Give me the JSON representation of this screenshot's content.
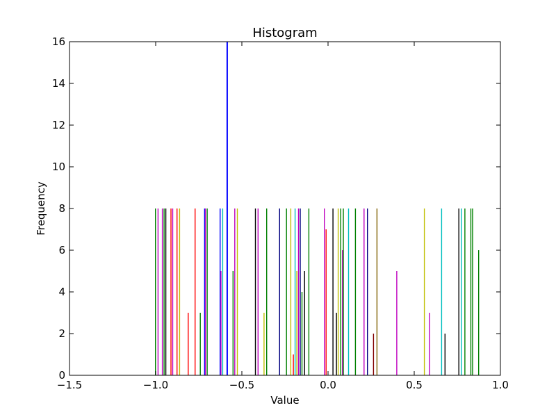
{
  "chart_data": {
    "type": "bar",
    "title": "Histogram",
    "xlabel": "Value",
    "ylabel": "Frequency",
    "xlim": [
      -1.5,
      1.0
    ],
    "ylim": [
      0,
      16
    ],
    "x_ticks": [
      "−1.5",
      "−1.0",
      "−0.5",
      "0.0",
      "0.5",
      "1.0"
    ],
    "y_ticks": [
      "0",
      "2",
      "4",
      "6",
      "8",
      "10",
      "12",
      "14",
      "16"
    ],
    "grid": false,
    "legend": "none",
    "bars": [
      {
        "x": -1.0,
        "value": 8,
        "color": "#008000"
      },
      {
        "x": -0.985,
        "value": 8,
        "color": "#bf00bf"
      },
      {
        "x": -0.96,
        "value": 8,
        "color": "#bf00bf"
      },
      {
        "x": -0.95,
        "value": 8,
        "color": "#008000"
      },
      {
        "x": -0.94,
        "value": 8,
        "color": "#000000"
      },
      {
        "x": -0.91,
        "value": 8,
        "color": "#ff0000"
      },
      {
        "x": -0.9,
        "value": 8,
        "color": "#bf00bf"
      },
      {
        "x": -0.875,
        "value": 8,
        "color": "#ff0000"
      },
      {
        "x": -0.86,
        "value": 8,
        "color": "#bfbf00"
      },
      {
        "x": -0.81,
        "value": 3,
        "color": "#ff0000"
      },
      {
        "x": -0.77,
        "value": 8,
        "color": "#ff0000"
      },
      {
        "x": -0.74,
        "value": 3,
        "color": "#008000"
      },
      {
        "x": -0.715,
        "value": 8,
        "color": "#0000ff"
      },
      {
        "x": -0.71,
        "value": 8,
        "color": "#bf00bf"
      },
      {
        "x": -0.7,
        "value": 8,
        "color": "#008000"
      },
      {
        "x": -0.625,
        "value": 8,
        "color": "#0000ff"
      },
      {
        "x": -0.62,
        "value": 5,
        "color": "#bf00bf"
      },
      {
        "x": -0.61,
        "value": 8,
        "color": "#00bfbf"
      },
      {
        "x": -0.585,
        "value": 16,
        "color": "#0000ff"
      },
      {
        "x": -0.55,
        "value": 5,
        "color": "#008000"
      },
      {
        "x": -0.54,
        "value": 8,
        "color": "#bf00bf"
      },
      {
        "x": -0.525,
        "value": 8,
        "color": "#bfbf00"
      },
      {
        "x": -0.42,
        "value": 8,
        "color": "#000000"
      },
      {
        "x": -0.405,
        "value": 8,
        "color": "#bf00bf"
      },
      {
        "x": -0.37,
        "value": 3,
        "color": "#bfbf00"
      },
      {
        "x": -0.355,
        "value": 8,
        "color": "#008000"
      },
      {
        "x": -0.28,
        "value": 8,
        "color": "#000080"
      },
      {
        "x": -0.24,
        "value": 8,
        "color": "#008000"
      },
      {
        "x": -0.215,
        "value": 8,
        "color": "#bfbf00"
      },
      {
        "x": -0.2,
        "value": 1,
        "color": "#ff0000"
      },
      {
        "x": -0.19,
        "value": 8,
        "color": "#00bfbf"
      },
      {
        "x": -0.18,
        "value": 5,
        "color": "#bfbf00"
      },
      {
        "x": -0.17,
        "value": 8,
        "color": "#bf00bf"
      },
      {
        "x": -0.16,
        "value": 8,
        "color": "#000080"
      },
      {
        "x": -0.15,
        "value": 4,
        "color": "#008000"
      },
      {
        "x": -0.135,
        "value": 5,
        "color": "#000000"
      },
      {
        "x": -0.11,
        "value": 8,
        "color": "#008000"
      },
      {
        "x": -0.02,
        "value": 8,
        "color": "#bf00bf"
      },
      {
        "x": -0.01,
        "value": 7,
        "color": "#ff0000"
      },
      {
        "x": 0.03,
        "value": 8,
        "color": "#000000"
      },
      {
        "x": 0.05,
        "value": 3,
        "color": "#000000"
      },
      {
        "x": 0.06,
        "value": 8,
        "color": "#bfbf00"
      },
      {
        "x": 0.075,
        "value": 8,
        "color": "#008000"
      },
      {
        "x": 0.085,
        "value": 6,
        "color": "#bf00bf"
      },
      {
        "x": 0.09,
        "value": 8,
        "color": "#008000"
      },
      {
        "x": 0.12,
        "value": 8,
        "color": "#00bfbf"
      },
      {
        "x": 0.16,
        "value": 8,
        "color": "#008000"
      },
      {
        "x": 0.21,
        "value": 8,
        "color": "#bf00bf"
      },
      {
        "x": 0.23,
        "value": 8,
        "color": "#000080"
      },
      {
        "x": 0.265,
        "value": 2,
        "color": "#800000"
      },
      {
        "x": 0.285,
        "value": 8,
        "color": "#806000"
      },
      {
        "x": 0.4,
        "value": 5,
        "color": "#bf00bf"
      },
      {
        "x": 0.56,
        "value": 8,
        "color": "#bfbf00"
      },
      {
        "x": 0.59,
        "value": 3,
        "color": "#bf00bf"
      },
      {
        "x": 0.66,
        "value": 8,
        "color": "#00bfbf"
      },
      {
        "x": 0.68,
        "value": 2,
        "color": "#000000"
      },
      {
        "x": 0.76,
        "value": 8,
        "color": "#000000"
      },
      {
        "x": 0.775,
        "value": 8,
        "color": "#00bfbf"
      },
      {
        "x": 0.795,
        "value": 8,
        "color": "#008000"
      },
      {
        "x": 0.83,
        "value": 8,
        "color": "#008000"
      },
      {
        "x": 0.84,
        "value": 8,
        "color": "#008000"
      },
      {
        "x": 0.875,
        "value": 6,
        "color": "#008000"
      }
    ]
  }
}
